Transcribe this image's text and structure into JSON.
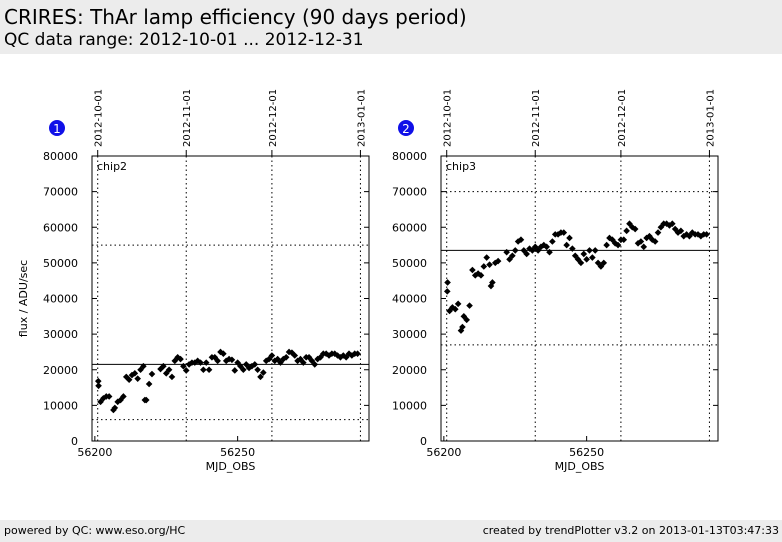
{
  "header": {
    "title": "CRIRES: ThAr lamp efficiency (90 days period)",
    "subtitle": "QC data range: 2012-10-01 ... 2012-12-31"
  },
  "footer": {
    "left": "powered by QC: www.eso.org/HC",
    "right": "created by trendPlotter v3.2 on 2013-01-13T03:47:33"
  },
  "colors": {
    "badge": "#1010e8",
    "header_bg": "#ececec"
  },
  "chart_data": [
    {
      "type": "scatter",
      "badge": "1",
      "panel_label": "chip2",
      "xlabel": "MJD_OBS",
      "ylabel": "flux / ADU/sec",
      "xlim": [
        56199,
        56296
      ],
      "ylim": [
        0,
        80000
      ],
      "xticks": [
        56200,
        56250
      ],
      "yticks": [
        0,
        10000,
        20000,
        30000,
        40000,
        50000,
        60000,
        70000,
        80000
      ],
      "date_ticks": [
        {
          "label": "2012-10-01",
          "mjd": 56201
        },
        {
          "label": "2012-11-01",
          "mjd": 56232
        },
        {
          "label": "2012-12-01",
          "mjd": 56262
        },
        {
          "label": "2013-01-01",
          "mjd": 56293
        }
      ],
      "mean": 21500,
      "lower": 6000,
      "upper": 55000,
      "x": [
        56201.2,
        56201.3,
        56202,
        56203,
        56204,
        56205,
        56206.5,
        56207,
        56208,
        56209,
        56210,
        56211,
        56212,
        56213,
        56214,
        56215,
        56216,
        56217,
        56217.5,
        56218,
        56219,
        56220,
        56223,
        56224,
        56225,
        56226,
        56227,
        56228,
        56229,
        56230,
        56231,
        56232,
        56233,
        56234,
        56235,
        56236,
        56237,
        56238,
        56239,
        56240,
        56241,
        56242,
        56243,
        56244,
        56245,
        56246,
        56247,
        56248,
        56249,
        56250,
        56251,
        56252,
        56253,
        56254,
        56255,
        56256,
        56257,
        56258,
        56259,
        56260,
        56261,
        56262,
        56263,
        56264,
        56265,
        56266,
        56267,
        56268,
        56269,
        56270,
        56271,
        56272,
        56273,
        56274,
        56275,
        56276,
        56277,
        56278,
        56279,
        56280,
        56281,
        56282,
        56283,
        56284,
        56285,
        56286,
        56287,
        56288,
        56289,
        56290,
        56291,
        56292
      ],
      "y": [
        16800,
        15500,
        11000,
        12000,
        12500,
        12500,
        8700,
        9300,
        11000,
        11500,
        12500,
        18000,
        17200,
        18500,
        19000,
        17500,
        20000,
        21000,
        11500,
        11500,
        16000,
        18800,
        20200,
        21000,
        19000,
        20000,
        18000,
        22500,
        23500,
        23000,
        21000,
        19800,
        21500,
        22000,
        22000,
        22500,
        22000,
        20000,
        22000,
        20000,
        23500,
        23500,
        22500,
        25000,
        24500,
        22500,
        23000,
        22800,
        19800,
        22000,
        21000,
        20000,
        21500,
        20500,
        21000,
        21500,
        20000,
        18000,
        19200,
        22500,
        23000,
        24000,
        22500,
        23000,
        22000,
        23000,
        23500,
        25000,
        24800,
        24000,
        22500,
        23000,
        22000,
        23500,
        23500,
        22500,
        21500,
        23000,
        23500,
        24500,
        24500,
        24000,
        24500,
        24500,
        24000,
        23500,
        24000,
        23500,
        24500,
        24000,
        24500,
        24500
      ]
    },
    {
      "type": "scatter",
      "badge": "2",
      "panel_label": "chip3",
      "xlabel": "MJD_OBS",
      "ylabel": "",
      "xlim": [
        56199,
        56296
      ],
      "ylim": [
        0,
        80000
      ],
      "xticks": [
        56200,
        56250
      ],
      "yticks": [
        0,
        10000,
        20000,
        30000,
        40000,
        50000,
        60000,
        70000,
        80000
      ],
      "date_ticks": [
        {
          "label": "2012-10-01",
          "mjd": 56201
        },
        {
          "label": "2012-11-01",
          "mjd": 56232
        },
        {
          "label": "2012-12-01",
          "mjd": 56262
        },
        {
          "label": "2013-01-01",
          "mjd": 56293
        }
      ],
      "mean": 53500,
      "lower": 27000,
      "upper": 70000,
      "x": [
        56201.2,
        56201.3,
        56202,
        56203,
        56204,
        56205,
        56206,
        56206.5,
        56207,
        56208,
        56209,
        56210,
        56211,
        56212,
        56213,
        56214,
        56215,
        56216,
        56216.5,
        56217,
        56218,
        56219,
        56222,
        56223,
        56224,
        56225,
        56226,
        56227,
        56228,
        56229,
        56230,
        56231,
        56232,
        56233,
        56234,
        56235,
        56236,
        56237,
        56238,
        56239,
        56240,
        56241,
        56242,
        56243,
        56244,
        56245,
        56246,
        56247,
        56248,
        56249,
        56250,
        56251,
        56252,
        56253,
        56254,
        56255,
        56256,
        56257,
        56258,
        56259,
        56260,
        56261,
        56262,
        56263,
        56264,
        56265,
        56266,
        56267,
        56268,
        56269,
        56270,
        56271,
        56272,
        56273,
        56274,
        56275,
        56276,
        56277,
        56278,
        56279,
        56280,
        56281,
        56282,
        56283,
        56284,
        56285,
        56286,
        56287,
        56288,
        56289,
        56290,
        56291,
        56292
      ],
      "y": [
        42000,
        44500,
        36500,
        37500,
        37000,
        38500,
        31000,
        32000,
        35000,
        34000,
        38000,
        48000,
        46500,
        47000,
        46500,
        49000,
        51500,
        49500,
        43500,
        44500,
        50000,
        50500,
        53000,
        51000,
        52000,
        53500,
        56000,
        56500,
        53500,
        52500,
        54000,
        53500,
        54500,
        53500,
        54500,
        55000,
        54500,
        53000,
        56000,
        58000,
        58000,
        58500,
        58500,
        55000,
        57000,
        54000,
        52000,
        51000,
        50000,
        52500,
        51000,
        53500,
        51500,
        53500,
        50000,
        49000,
        50000,
        55000,
        57000,
        56500,
        55500,
        55000,
        56500,
        56500,
        59000,
        61000,
        60000,
        59500,
        55500,
        56000,
        54500,
        57000,
        57500,
        56500,
        56000,
        58500,
        60000,
        61000,
        61000,
        60500,
        61000,
        59500,
        58500,
        59000,
        57500,
        58000,
        57500,
        58500,
        58000,
        58000,
        57500,
        58000,
        58000
      ]
    }
  ]
}
